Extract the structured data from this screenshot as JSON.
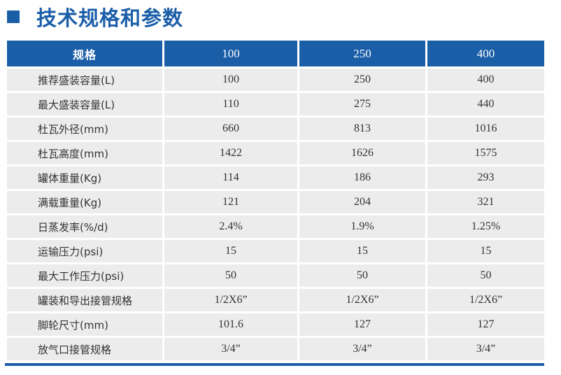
{
  "title": "技术规格和参数",
  "table": {
    "headers": [
      "规格",
      "100",
      "250",
      "400"
    ],
    "rows": [
      [
        "推荐盛装容量(L)",
        "100",
        "250",
        "400"
      ],
      [
        "最大盛装容量(L)",
        "110",
        "275",
        "440"
      ],
      [
        "杜瓦外径(mm)",
        "660",
        "813",
        "1016"
      ],
      [
        "杜瓦高度(mm)",
        "1422",
        "1626",
        "1575"
      ],
      [
        "罐体重量(Kg)",
        "114",
        "186",
        "293"
      ],
      [
        "满载重量(Kg)",
        "121",
        "204",
        "321"
      ],
      [
        "日蒸发率(%/d)",
        "2.4%",
        "1.9%",
        "1.25%"
      ],
      [
        "运输压力(psi)",
        "15",
        "15",
        "15"
      ],
      [
        "最大工作压力(psi)",
        "50",
        "50",
        "50"
      ],
      [
        "罐装和导出接管规格",
        "1/2X6”",
        "1/2X6”",
        "1/2X6”"
      ],
      [
        "脚轮尺寸(mm)",
        "101.6",
        "127",
        "127"
      ],
      [
        "放气口接管规格",
        "3/4”",
        "3/4”",
        "3/4”"
      ]
    ]
  },
  "colors": {
    "accent": "#1b5ea8",
    "row_bg": "#ececec",
    "text": "#333333"
  }
}
